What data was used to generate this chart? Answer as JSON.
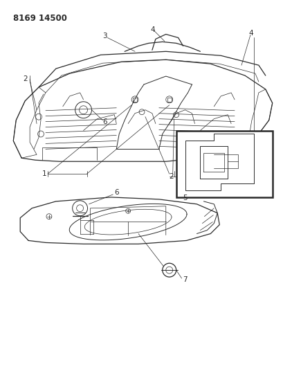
{
  "title_text": "8169 14500",
  "bg_color": "#ffffff",
  "line_color": "#2a2a2a",
  "figsize": [
    4.1,
    5.33
  ],
  "dpi": 100,
  "label_fontsize": 7.5,
  "title_fontsize": 8.5
}
